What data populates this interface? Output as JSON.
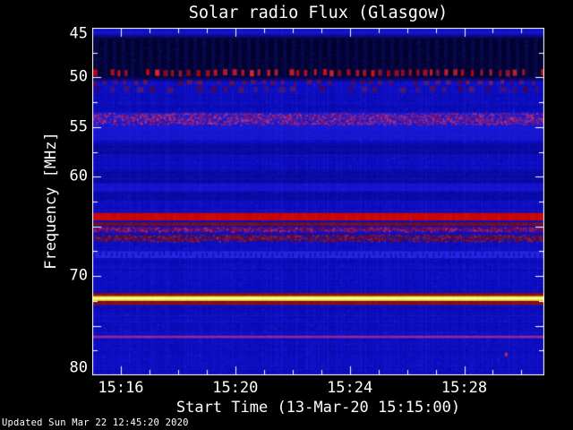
{
  "footer": {
    "updated": "Updated Sun Mar 22 12:45:20 2020"
  },
  "chart_data": {
    "type": "heatmap",
    "subtype": "radio-spectrogram",
    "title": "Solar radio Flux (Glasgow)",
    "xlabel": "Start Time (13-Mar-20 15:15:00)",
    "ylabel": "Frequency [MHz]",
    "start_time": "13-Mar-20 15:15:00",
    "x_end_min": 15.8,
    "x_minor_step_min": 1,
    "x_ticks": [
      {
        "min": 1,
        "label": "15:16"
      },
      {
        "min": 5,
        "label": "15:20"
      },
      {
        "min": 9,
        "label": "15:24"
      },
      {
        "min": 13,
        "label": "15:28"
      }
    ],
    "ylim": [
      45,
      80
    ],
    "y_axis_direction": "inverted-low-at-top",
    "y_ticks": [
      45,
      50,
      55,
      60,
      70,
      80
    ],
    "y_major_tick_step": 5,
    "y_minor_tick_step": 2.5,
    "grid": false,
    "legend": "none",
    "frame_color": "#ffffff",
    "text_color": "#ffffff",
    "background": {
      "base_color": "#0e0ec4",
      "noise_colors": [
        "#0a0ab4",
        "#1c1cdc",
        "#0606a0",
        "#2626ee",
        "#1212cc"
      ]
    },
    "bands": [
      {
        "name": "top-blue-band",
        "f1": 45.0,
        "f2": 46.1,
        "style": "wash",
        "color": "#1717d2",
        "alpha": 0.5
      },
      {
        "name": "dark-quiet-band",
        "f1": 46.1,
        "f2": 49.95,
        "style": "dark",
        "color": "#00001e",
        "alpha": 0.88
      },
      {
        "name": "rfi-dash-row-49.5MHz",
        "f1": 49.22,
        "f2": 49.85,
        "style": "dashes",
        "color": "#d81616",
        "alpha": 1,
        "dash": 4,
        "gap": 5
      },
      {
        "name": "rfi-faint-dash-row-50.5MHz",
        "f1": 50.3,
        "f2": 50.72,
        "style": "dashes",
        "color": "#7c1422",
        "alpha": 0.8,
        "dash": 5,
        "gap": 7
      },
      {
        "name": "rfi-faint-dash-row-51.2MHz",
        "f1": 50.95,
        "f2": 51.5,
        "style": "dashes",
        "color": "#6e1226",
        "alpha": 0.65,
        "dash": 6,
        "gap": 9
      },
      {
        "name": "speckle-band-54MHz",
        "f1": 53.55,
        "f2": 54.75,
        "style": "speckle",
        "color": "#a82470",
        "color2": "#2525e0",
        "alpha": 1
      },
      {
        "name": "bright-blue-band-55.5MHz",
        "f1": 54.75,
        "f2": 56.3,
        "style": "wash",
        "color": "#2424e6",
        "alpha": 0.45
      },
      {
        "name": "dim-band-57MHz",
        "f1": 56.6,
        "f2": 57.8,
        "style": "wash",
        "color": "#000058",
        "alpha": 0.28
      },
      {
        "name": "dim-band-60MHz",
        "f1": 59.3,
        "f2": 60.6,
        "style": "wash",
        "color": "#000052",
        "alpha": 0.25
      },
      {
        "name": "bright-band-61MHz",
        "f1": 60.7,
        "f2": 61.4,
        "style": "wash",
        "color": "#2222e4",
        "alpha": 0.35
      },
      {
        "name": "dim-band-62MHz",
        "f1": 61.6,
        "f2": 62.4,
        "style": "wash",
        "color": "#000050",
        "alpha": 0.22
      },
      {
        "name": "strong-red-band-64MHz",
        "f1": 63.65,
        "f2": 64.4,
        "style": "solid",
        "color": "#c80808",
        "alpha": 1
      },
      {
        "name": "dark-red-line-64.8MHz",
        "f1": 64.6,
        "f2": 64.95,
        "style": "solid",
        "color": "#76101e",
        "alpha": 0.9
      },
      {
        "name": "purple-red-band-65.3MHz",
        "f1": 65.05,
        "f2": 65.5,
        "style": "speckle",
        "color": "#b01840",
        "color2": "#5a1070",
        "alpha": 1
      },
      {
        "name": "maroon-band-66.2MHz",
        "f1": 65.8,
        "f2": 66.5,
        "style": "speckle",
        "color": "#8c1224",
        "color2": "#3a1060",
        "alpha": 1
      },
      {
        "name": "textured-blue-band-67.9MHz",
        "f1": 67.5,
        "f2": 68.2,
        "style": "texture",
        "color": "#2c2cea",
        "color2": "#000078",
        "alpha": 0.8
      },
      {
        "name": "dark-red-edge-71.9MHz",
        "f1": 71.72,
        "f2": 72.02,
        "style": "solid",
        "color": "#8e0e0e",
        "alpha": 1
      },
      {
        "name": "bright-yellow-band-72.2MHz",
        "f1": 72.02,
        "f2": 72.5,
        "style": "solid",
        "color": "#f2e41a",
        "alpha": 1
      },
      {
        "name": "yellow-core-line-72.25MHz",
        "f1": 72.18,
        "f2": 72.32,
        "style": "solid",
        "color": "#fffde0",
        "alpha": 0.95
      },
      {
        "name": "dark-red-edge-72.7MHz",
        "f1": 72.55,
        "f2": 72.9,
        "style": "solid",
        "color": "#8e0e0e",
        "alpha": 1
      },
      {
        "name": "magenta-line-76.1MHz",
        "f1": 76.0,
        "f2": 76.25,
        "style": "solid",
        "color": "#a22c9a",
        "alpha": 0.85
      }
    ],
    "point_events": [
      {
        "name": "isolated-red-dot",
        "time_min": 14.45,
        "freq_mhz": 77.9,
        "color": "#c23434"
      }
    ]
  }
}
